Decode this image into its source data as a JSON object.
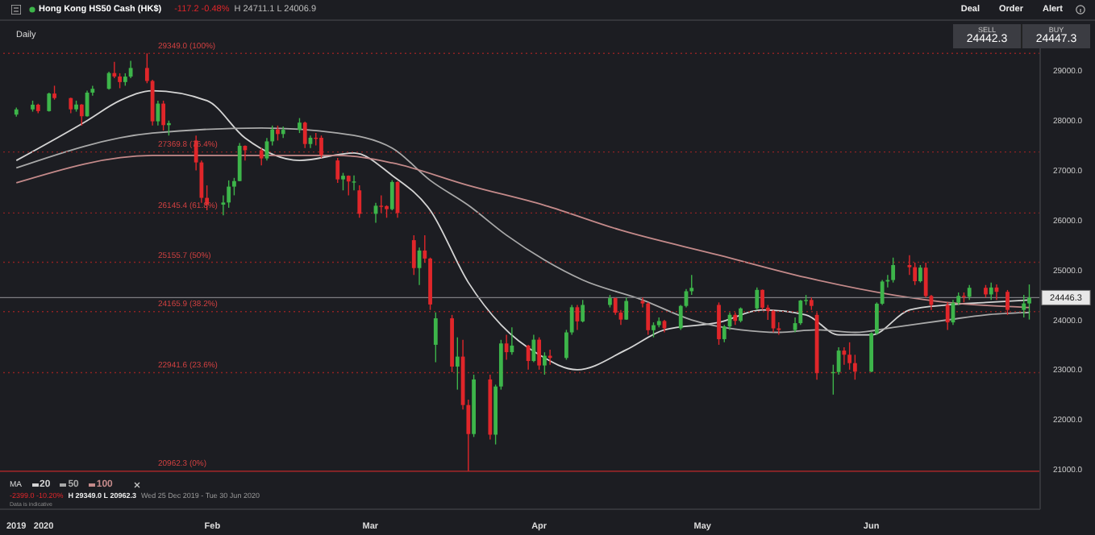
{
  "chart_data": {
    "type": "candlestick",
    "title": "Hong Kong HS50 Cash (HK$)",
    "subtitle": "Daily",
    "legend_title": "MA",
    "legend": "bottom left",
    "annotations": [
      "-117.2 -0.48%",
      "H 24711.1 L 24006.9",
      "Deal",
      "Order",
      "Alert",
      "SELL",
      "24442.3",
      "BUY",
      "24447.3",
      "-2399.0 -10.20%",
      "H 29349.0 L 20962.3",
      "Wed 25 Dec 2019 - Tue 30 Jun 2020",
      "Data is indicative"
    ],
    "x": [
      "2019-12-27",
      "2019-12-30",
      "2019-12-31",
      "2020-01-02",
      "2020-01-03",
      "2020-01-06",
      "2020-01-07",
      "2020-01-08",
      "2020-01-09",
      "2020-01-10",
      "2020-01-13",
      "2020-01-14",
      "2020-01-15",
      "2020-01-16",
      "2020-01-17",
      "2020-01-20",
      "2020-01-21",
      "2020-01-22",
      "2020-01-23",
      "2020-01-24",
      "2020-01-29",
      "2020-01-30",
      "2020-01-31",
      "2020-02-03",
      "2020-02-04",
      "2020-02-05",
      "2020-02-06",
      "2020-02-07",
      "2020-02-10",
      "2020-02-11",
      "2020-02-12",
      "2020-02-13",
      "2020-02-14",
      "2020-02-17",
      "2020-02-18",
      "2020-02-19",
      "2020-02-20",
      "2020-02-21",
      "2020-02-24",
      "2020-02-25",
      "2020-02-26",
      "2020-02-27",
      "2020-02-28",
      "2020-03-02",
      "2020-03-03",
      "2020-03-04",
      "2020-03-05",
      "2020-03-06",
      "2020-03-09",
      "2020-03-10",
      "2020-03-11",
      "2020-03-12",
      "2020-03-13",
      "2020-03-16",
      "2020-03-17",
      "2020-03-18",
      "2020-03-19",
      "2020-03-20",
      "2020-03-23",
      "2020-03-24",
      "2020-03-25",
      "2020-03-26",
      "2020-03-27",
      "2020-03-30",
      "2020-03-31",
      "2020-04-01",
      "2020-04-02",
      "2020-04-03",
      "2020-04-06",
      "2020-04-07",
      "2020-04-08",
      "2020-04-09",
      "2020-04-14",
      "2020-04-15",
      "2020-04-16",
      "2020-04-17",
      "2020-04-20",
      "2020-04-21",
      "2020-04-22",
      "2020-04-23",
      "2020-04-24",
      "2020-04-27",
      "2020-04-28",
      "2020-04-29",
      "2020-05-04",
      "2020-05-05",
      "2020-05-06",
      "2020-05-07",
      "2020-05-08",
      "2020-05-11",
      "2020-05-12",
      "2020-05-13",
      "2020-05-14",
      "2020-05-15",
      "2020-05-18",
      "2020-05-19",
      "2020-05-20",
      "2020-05-21",
      "2020-05-22",
      "2020-05-25",
      "2020-05-26",
      "2020-05-27",
      "2020-05-28",
      "2020-05-29",
      "2020-06-01",
      "2020-06-02",
      "2020-06-03",
      "2020-06-04",
      "2020-06-05",
      "2020-06-08",
      "2020-06-09",
      "2020-06-10",
      "2020-06-11",
      "2020-06-12",
      "2020-06-15",
      "2020-06-16",
      "2020-06-17",
      "2020-06-18",
      "2020-06-19",
      "2020-06-22",
      "2020-06-23",
      "2020-06-24",
      "2020-06-26",
      "2020-06-29",
      "2020-06-30"
    ],
    "ohlc": [
      [
        28120,
        28260,
        28080,
        28225
      ],
      [
        28225,
        28400,
        28180,
        28319
      ],
      [
        28319,
        28340,
        28150,
        28190
      ],
      [
        28190,
        28560,
        28180,
        28543
      ],
      [
        28543,
        28700,
        28420,
        28452
      ],
      [
        28452,
        28460,
        28150,
        28226
      ],
      [
        28226,
        28400,
        28180,
        28322
      ],
      [
        28322,
        28330,
        27900,
        28087
      ],
      [
        28087,
        28600,
        28080,
        28561
      ],
      [
        28561,
        28700,
        28500,
        28638
      ],
      [
        28638,
        28980,
        28620,
        28954
      ],
      [
        28954,
        29180,
        28850,
        28885
      ],
      [
        28885,
        28950,
        28650,
        28773
      ],
      [
        28773,
        28950,
        28700,
        28883
      ],
      [
        28883,
        29200,
        28850,
        29056
      ],
      [
        29056,
        29349,
        28750,
        28795
      ],
      [
        28795,
        28820,
        27900,
        27985
      ],
      [
        27985,
        28400,
        27900,
        28341
      ],
      [
        28341,
        28400,
        27800,
        27909
      ],
      [
        27909,
        28000,
        27700,
        27949
      ],
      [
        27600,
        27700,
        27000,
        27160
      ],
      [
        27160,
        27200,
        26350,
        26449
      ],
      [
        26449,
        26700,
        26200,
        26313
      ],
      [
        26313,
        26500,
        26100,
        26356
      ],
      [
        26356,
        26800,
        26250,
        26675
      ],
      [
        26675,
        26850,
        26500,
        26786
      ],
      [
        26786,
        27550,
        26780,
        27494
      ],
      [
        27494,
        27500,
        27200,
        27404
      ],
      [
        27404,
        27450,
        27100,
        27241
      ],
      [
        27241,
        27650,
        27200,
        27583
      ],
      [
        27583,
        27900,
        27500,
        27823
      ],
      [
        27823,
        27900,
        27600,
        27730
      ],
      [
        27730,
        27880,
        27650,
        27815
      ],
      [
        27815,
        28050,
        27750,
        27959
      ],
      [
        27959,
        27980,
        27450,
        27530
      ],
      [
        27530,
        27700,
        27450,
        27656
      ],
      [
        27656,
        27750,
        27500,
        27655
      ],
      [
        27655,
        27700,
        27250,
        27309
      ],
      [
        27200,
        27250,
        26750,
        26820
      ],
      [
        26820,
        26950,
        26600,
        26893
      ],
      [
        26893,
        26900,
        26500,
        26778
      ],
      [
        26778,
        26900,
        26600,
        26778
      ],
      [
        26600,
        26700,
        26050,
        26129
      ],
      [
        26129,
        26350,
        25950,
        26291
      ],
      [
        26291,
        26500,
        26150,
        26284
      ],
      [
        26284,
        26300,
        26050,
        26222
      ],
      [
        26222,
        26800,
        26200,
        26767
      ],
      [
        26767,
        26780,
        26050,
        26146
      ],
      [
        25600,
        25700,
        24900,
        25040
      ],
      [
        25040,
        25450,
        24700,
        25392
      ],
      [
        25392,
        25700,
        25150,
        25231
      ],
      [
        25231,
        25250,
        24200,
        24309
      ],
      [
        23500,
        24150,
        23150,
        24032
      ],
      [
        24032,
        24100,
        22950,
        23063
      ],
      [
        23063,
        23650,
        22600,
        23263
      ],
      [
        23263,
        23600,
        22200,
        22291
      ],
      [
        22291,
        22400,
        20962.3,
        21709
      ],
      [
        21709,
        22900,
        21650,
        22805
      ],
      [
        22805,
        22900,
        21600,
        21696
      ],
      [
        21696,
        22700,
        21500,
        22663
      ],
      [
        22663,
        23600,
        22600,
        23527
      ],
      [
        23527,
        23700,
        23200,
        23352
      ],
      [
        23352,
        23850,
        23300,
        23484
      ],
      [
        23484,
        23500,
        23000,
        23175
      ],
      [
        23175,
        23700,
        23150,
        23603
      ],
      [
        23603,
        23650,
        23000,
        23085
      ],
      [
        23085,
        23350,
        22900,
        23280
      ],
      [
        23280,
        23400,
        23100,
        23236
      ],
      [
        23236,
        23800,
        23200,
        23749
      ],
      [
        23749,
        24300,
        23700,
        24254
      ],
      [
        24254,
        24300,
        23800,
        23970
      ],
      [
        23970,
        24400,
        23950,
        24300
      ],
      [
        24300,
        24500,
        24250,
        24435
      ],
      [
        24435,
        24450,
        24100,
        24145
      ],
      [
        24145,
        24200,
        23900,
        24006
      ],
      [
        24006,
        24450,
        24000,
        24380
      ],
      [
        24380,
        24450,
        24250,
        24330
      ],
      [
        24330,
        24350,
        23700,
        23793
      ],
      [
        23793,
        23950,
        23650,
        23894
      ],
      [
        23894,
        24050,
        23850,
        23977
      ],
      [
        23977,
        24000,
        23750,
        23831
      ],
      [
        23831,
        24300,
        23800,
        24280
      ],
      [
        24280,
        24620,
        24250,
        24575
      ],
      [
        24575,
        24900,
        24500,
        24643
      ],
      [
        24300,
        24350,
        23500,
        23613
      ],
      [
        23613,
        23900,
        23550,
        23868
      ],
      [
        23868,
        24150,
        23800,
        24102
      ],
      [
        24102,
        24150,
        23900,
        23980
      ],
      [
        23980,
        24250,
        23950,
        24230
      ],
      [
        24230,
        24650,
        24200,
        24602
      ],
      [
        24602,
        24610,
        24200,
        24245
      ],
      [
        24245,
        24300,
        24000,
        24181
      ],
      [
        24181,
        24200,
        23750,
        23830
      ],
      [
        23830,
        23950,
        23700,
        23797
      ],
      [
        23797,
        24050,
        23750,
        23934
      ],
      [
        23934,
        24400,
        23900,
        24388
      ],
      [
        24388,
        24500,
        24300,
        24400
      ],
      [
        24400,
        24450,
        24200,
        24280
      ],
      [
        24100,
        24150,
        22800,
        22930
      ],
      [
        22930,
        23100,
        22500,
        22953
      ],
      [
        22953,
        23450,
        22900,
        23384
      ],
      [
        23384,
        23450,
        23100,
        23301
      ],
      [
        23301,
        23550,
        23000,
        23132
      ],
      [
        23132,
        23300,
        22800,
        22961
      ],
      [
        22961,
        23750,
        22950,
        23732
      ],
      [
        23732,
        24350,
        23700,
        24325
      ],
      [
        24325,
        24800,
        24300,
        24770
      ],
      [
        24770,
        24900,
        24650,
        24800
      ],
      [
        24800,
        25250,
        24750,
        25100
      ],
      [
        25100,
        25300,
        24900,
        25057
      ],
      [
        25057,
        25150,
        24700,
        24776
      ],
      [
        24776,
        25100,
        24750,
        25049
      ],
      [
        25049,
        25150,
        24450,
        24480
      ],
      [
        24480,
        24500,
        24200,
        24301
      ],
      [
        24301,
        24350,
        23800,
        23950
      ],
      [
        23950,
        24400,
        23900,
        24344
      ],
      [
        24344,
        24550,
        24300,
        24481
      ],
      [
        24481,
        24550,
        24350,
        24464
      ],
      [
        24464,
        24700,
        24400,
        24644
      ],
      [
        24644,
        24700,
        24450,
        24511
      ],
      [
        24511,
        24750,
        24400,
        24650
      ],
      [
        24650,
        24711,
        24400,
        24563
      ],
      [
        24563,
        24600,
        24100,
        24200
      ],
      [
        24200,
        24500,
        24050,
        24330
      ],
      [
        24330,
        24711.1,
        24006.9,
        24446.3
      ]
    ],
    "series": [
      {
        "name": "20",
        "type": "line",
        "color": "#d4d4d4",
        "x": [
          "2019-12-27",
          "2020-01-09",
          "2020-01-15",
          "2020-01-21",
          "2020-01-31",
          "2020-02-07",
          "2020-02-17",
          "2020-02-27",
          "2020-03-05",
          "2020-03-12",
          "2020-03-19",
          "2020-03-25",
          "2020-04-01",
          "2020-04-08",
          "2020-04-17",
          "2020-04-24",
          "2020-05-04",
          "2020-05-12",
          "2020-05-20",
          "2020-05-26",
          "2020-06-01",
          "2020-06-08",
          "2020-06-15",
          "2020-06-22",
          "2020-06-30"
        ],
        "values": [
          27200,
          28000,
          28400,
          28600,
          28400,
          27650,
          27200,
          27350,
          26900,
          26200,
          24750,
          23900,
          23300,
          23000,
          23400,
          23800,
          23950,
          24200,
          24100,
          23700,
          23700,
          24200,
          24300,
          24350,
          24400
        ]
      },
      {
        "name": "50",
        "type": "line",
        "color": "#a9a9a9",
        "x": [
          "2019-12-27",
          "2020-01-21",
          "2020-02-10",
          "2020-02-24",
          "2020-03-05",
          "2020-03-12",
          "2020-03-19",
          "2020-03-26",
          "2020-04-02",
          "2020-04-09",
          "2020-04-20",
          "2020-04-29",
          "2020-05-08",
          "2020-05-15",
          "2020-05-22",
          "2020-05-29",
          "2020-06-05",
          "2020-06-15",
          "2020-06-22",
          "2020-06-30"
        ],
        "values": [
          27050,
          27750,
          27850,
          27750,
          27450,
          26800,
          26300,
          25700,
          25200,
          24800,
          24400,
          24000,
          23800,
          23750,
          23800,
          23750,
          23850,
          24000,
          24100,
          24150
        ]
      },
      {
        "name": "100",
        "type": "line",
        "color": "#c48a8a",
        "x": [
          "2019-12-27",
          "2020-01-21",
          "2020-02-24",
          "2020-03-05",
          "2020-03-19",
          "2020-04-02",
          "2020-04-16",
          "2020-05-04",
          "2020-05-20",
          "2020-06-05",
          "2020-06-15",
          "2020-06-30"
        ],
        "values": [
          26750,
          27300,
          27300,
          27150,
          26700,
          26300,
          25800,
          25300,
          24850,
          24500,
          24350,
          24250
        ]
      }
    ],
    "ylim": [
      20200,
      29450
    ],
    "yticks": [
      {
        "value": 21000,
        "label": "21000.0"
      },
      {
        "value": 22000,
        "label": "22000.0"
      },
      {
        "value": 23000,
        "label": "23000.0"
      },
      {
        "value": 24000,
        "label": "24000.0"
      },
      {
        "value": 25000,
        "label": "25000.0"
      },
      {
        "value": 26000,
        "label": "26000.0"
      },
      {
        "value": 27000,
        "label": "27000.0"
      },
      {
        "value": 28000,
        "label": "28000.0"
      },
      {
        "value": 29000,
        "label": "29000.0"
      }
    ],
    "xlim": [
      "2019-12-24",
      "2020-07-02"
    ],
    "xticks": [
      {
        "value": "2019-12-27",
        "label": "2019"
      },
      {
        "value": "2020-01-01",
        "label": "2020"
      },
      {
        "value": "2020-02-01",
        "label": "Feb"
      },
      {
        "value": "2020-03-01",
        "label": "Mar"
      },
      {
        "value": "2020-04-01",
        "label": "Apr"
      },
      {
        "value": "2020-05-01",
        "label": "May"
      },
      {
        "value": "2020-06-01",
        "label": "Jun"
      }
    ],
    "ref_lines": [
      {
        "axis": "y",
        "value": 29349.0,
        "label": "29349.0 (100%)",
        "color": "#8e2323",
        "line_style": "dotted"
      },
      {
        "axis": "y",
        "value": 27369.8,
        "label": "27369.8 (76.4%)",
        "color": "#8e2323",
        "line_style": "dotted"
      },
      {
        "axis": "y",
        "value": 26145.4,
        "label": "26145.4 (61.8%)",
        "color": "#8e2323",
        "line_style": "dotted"
      },
      {
        "axis": "y",
        "value": 25155.7,
        "label": "25155.7 (50%)",
        "color": "#8e2323",
        "line_style": "dotted"
      },
      {
        "axis": "y",
        "value": 24165.9,
        "label": "24165.9 (38.2%)",
        "color": "#8e2323",
        "line_style": "dotted"
      },
      {
        "axis": "y",
        "value": 22941.6,
        "label": "22941.6 (23.6%)",
        "color": "#8e2323",
        "line_style": "dotted"
      },
      {
        "axis": "y",
        "value": 20962.3,
        "label": "20962.3 (0%)",
        "color": "#c0282a",
        "line_style": "solid"
      },
      {
        "axis": "y",
        "value": 24446.3,
        "label": "24446.3",
        "color": "#7d7d82",
        "line_style": "solid"
      }
    ]
  }
}
